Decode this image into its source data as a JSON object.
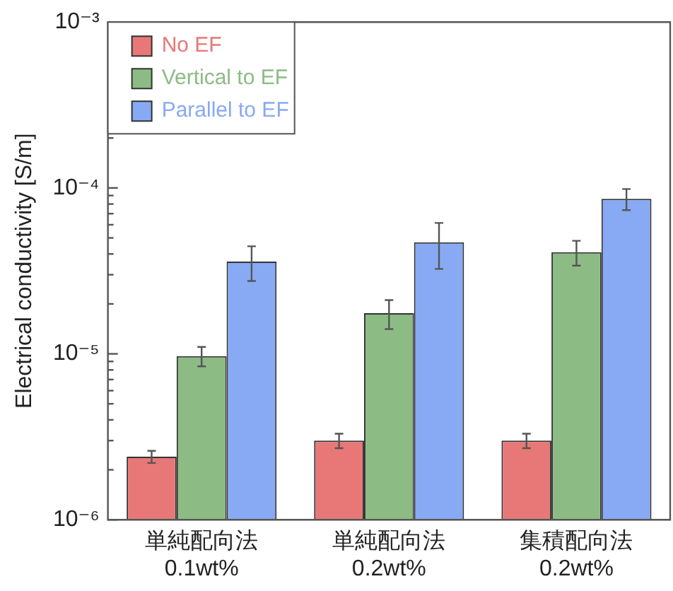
{
  "chart_data": {
    "type": "bar",
    "ylabel": "Electrical conductivity [S/m]",
    "categories": [
      "単純配向法\n0.1wt%",
      "単純配向法\n0.2wt%",
      "集積配向法\n0.2wt%"
    ],
    "series": [
      {
        "name": "No EF",
        "color": "#e87878",
        "values": [
          2.4e-06,
          3e-06,
          3e-06
        ],
        "errors": [
          2e-07,
          3e-07,
          3e-07
        ]
      },
      {
        "name": "Vertical to EF",
        "color": "#8cbc84",
        "values": [
          9.7e-06,
          1.76e-05,
          4.1e-05
        ],
        "errors": [
          1.3e-06,
          3.5e-06,
          7e-06
        ]
      },
      {
        "name": "Parallel to EF",
        "color": "#88aaf4",
        "values": [
          3.6e-05,
          4.7e-05,
          8.6e-05
        ],
        "errors": [
          8.5e-06,
          1.45e-05,
          1.25e-05
        ]
      }
    ],
    "log": "y",
    "ylim": [
      1e-06,
      0.001
    ],
    "yticks": [
      {
        "value": 1e-06,
        "label": "10⁻⁶"
      },
      {
        "value": 2e-06,
        "label": null
      },
      {
        "value": 3e-06,
        "label": null
      },
      {
        "value": 4e-06,
        "label": null
      },
      {
        "value": 5e-06,
        "label": null
      },
      {
        "value": 6e-06,
        "label": null
      },
      {
        "value": 7e-06,
        "label": null
      },
      {
        "value": 8e-06,
        "label": null
      },
      {
        "value": 9e-06,
        "label": null
      },
      {
        "value": 1e-05,
        "label": "10⁻⁵"
      },
      {
        "value": 2e-05,
        "label": null
      },
      {
        "value": 3e-05,
        "label": null
      },
      {
        "value": 4e-05,
        "label": null
      },
      {
        "value": 5e-05,
        "label": null
      },
      {
        "value": 6e-05,
        "label": null
      },
      {
        "value": 7e-05,
        "label": null
      },
      {
        "value": 8e-05,
        "label": null
      },
      {
        "value": 9e-05,
        "label": null
      },
      {
        "value": 0.0001,
        "label": "10⁻⁴"
      },
      {
        "value": 0.0002,
        "label": null
      },
      {
        "value": 0.0003,
        "label": null
      },
      {
        "value": 0.0004,
        "label": null
      },
      {
        "value": 0.0005,
        "label": null
      },
      {
        "value": 0.0006,
        "label": null
      },
      {
        "value": 0.0007,
        "label": null
      },
      {
        "value": 0.0008,
        "label": null
      },
      {
        "value": 0.0009,
        "label": null
      },
      {
        "value": 0.001,
        "label": "10⁻³"
      }
    ],
    "grid": false,
    "legend": "top left"
  }
}
